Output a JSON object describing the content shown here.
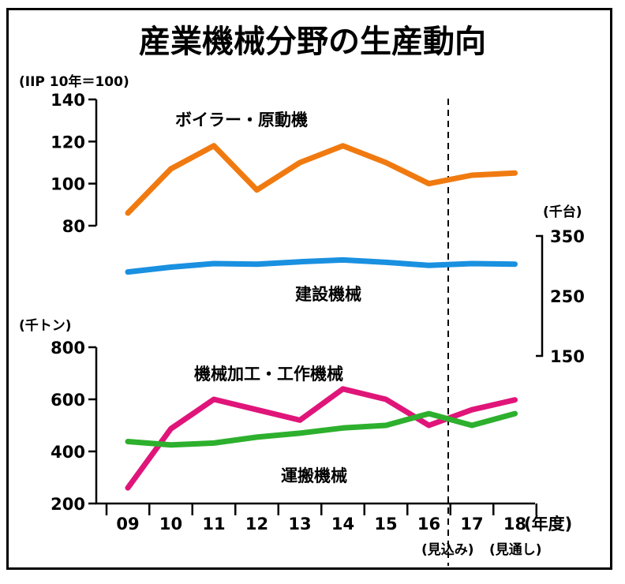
{
  "title": "産業機械分野の生産動向",
  "x_categories": [
    "09",
    "10",
    "11",
    "12",
    "13",
    "14",
    "15",
    "16",
    "17",
    "18"
  ],
  "x_unit": "(年度)",
  "forecast_labels": [
    "(見込み)",
    "(見通し)"
  ],
  "chart_data": [
    {
      "type": "line",
      "name": "top-panel",
      "unit_label": "(IIP  10年＝100)",
      "ylim": [
        80,
        140
      ],
      "y_ticks": [
        "80",
        "100",
        "120",
        "140"
      ],
      "series": [
        {
          "name": "ボイラー・原動機",
          "color": "#f07a10",
          "values": [
            86,
            107,
            118,
            97,
            110,
            118,
            110,
            100,
            104,
            105
          ]
        }
      ]
    },
    {
      "type": "line",
      "name": "middle-panel",
      "unit_label": "(千台)",
      "ylim": [
        150,
        350
      ],
      "y_ticks": [
        "150",
        "250",
        "350"
      ],
      "series": [
        {
          "name": "建設機械",
          "color": "#1a90e0",
          "values": [
            290,
            298,
            304,
            303,
            307,
            310,
            306,
            301,
            304,
            303
          ]
        }
      ]
    },
    {
      "type": "line",
      "name": "bottom-panel",
      "unit_label": "(千トン)",
      "ylim": [
        200,
        800
      ],
      "y_ticks": [
        "200",
        "400",
        "600",
        "800"
      ],
      "series": [
        {
          "name": "機械加工・工作機械",
          "color": "#e0157a",
          "values": [
            260,
            487,
            600,
            560,
            520,
            640,
            600,
            500,
            560,
            598
          ]
        },
        {
          "name": "運搬機械",
          "color": "#2db02d",
          "values": [
            438,
            425,
            432,
            455,
            470,
            490,
            500,
            545,
            500,
            545
          ]
        }
      ]
    }
  ]
}
